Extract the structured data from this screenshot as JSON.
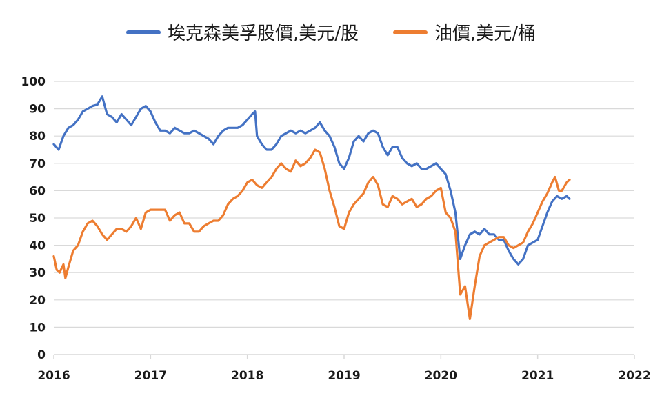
{
  "chart_data": {
    "type": "line",
    "title": "",
    "xlabel": "",
    "ylabel": "",
    "xlim": [
      2016,
      2022
    ],
    "ylim": [
      0,
      100
    ],
    "x_ticks": [
      "2016",
      "2017",
      "2018",
      "2019",
      "2020",
      "2021",
      "2022"
    ],
    "y_ticks": [
      "0",
      "10",
      "20",
      "30",
      "40",
      "50",
      "60",
      "70",
      "80",
      "90",
      "100"
    ],
    "grid": "horizontal",
    "legend_position": "top",
    "series": [
      {
        "name": "埃克森美孚股價,美元/股",
        "color": "#4472C4",
        "points": [
          [
            2016.0,
            77
          ],
          [
            2016.05,
            75
          ],
          [
            2016.1,
            80
          ],
          [
            2016.15,
            83
          ],
          [
            2016.2,
            84
          ],
          [
            2016.25,
            86
          ],
          [
            2016.3,
            89
          ],
          [
            2016.35,
            90
          ],
          [
            2016.4,
            91
          ],
          [
            2016.45,
            91.5
          ],
          [
            2016.5,
            94.5
          ],
          [
            2016.55,
            88
          ],
          [
            2016.6,
            87
          ],
          [
            2016.65,
            85
          ],
          [
            2016.7,
            88
          ],
          [
            2016.75,
            86
          ],
          [
            2016.8,
            84
          ],
          [
            2016.85,
            87
          ],
          [
            2016.9,
            90
          ],
          [
            2016.95,
            91
          ],
          [
            2017.0,
            89
          ],
          [
            2017.05,
            85
          ],
          [
            2017.1,
            82
          ],
          [
            2017.15,
            82
          ],
          [
            2017.2,
            81
          ],
          [
            2017.25,
            83
          ],
          [
            2017.3,
            82
          ],
          [
            2017.35,
            81
          ],
          [
            2017.4,
            81
          ],
          [
            2017.45,
            82
          ],
          [
            2017.5,
            81
          ],
          [
            2017.55,
            80
          ],
          [
            2017.6,
            79
          ],
          [
            2017.65,
            77
          ],
          [
            2017.7,
            80
          ],
          [
            2017.75,
            82
          ],
          [
            2017.8,
            83
          ],
          [
            2017.85,
            83
          ],
          [
            2017.9,
            83
          ],
          [
            2017.95,
            84
          ],
          [
            2018.0,
            86
          ],
          [
            2018.05,
            88
          ],
          [
            2018.08,
            89
          ],
          [
            2018.1,
            80
          ],
          [
            2018.15,
            77
          ],
          [
            2018.2,
            75
          ],
          [
            2018.25,
            75
          ],
          [
            2018.3,
            77
          ],
          [
            2018.35,
            80
          ],
          [
            2018.4,
            81
          ],
          [
            2018.45,
            82
          ],
          [
            2018.5,
            81
          ],
          [
            2018.55,
            82
          ],
          [
            2018.6,
            81
          ],
          [
            2018.65,
            82
          ],
          [
            2018.7,
            83
          ],
          [
            2018.75,
            85
          ],
          [
            2018.8,
            82
          ],
          [
            2018.85,
            80
          ],
          [
            2018.9,
            76
          ],
          [
            2018.95,
            70
          ],
          [
            2019.0,
            68
          ],
          [
            2019.05,
            72
          ],
          [
            2019.1,
            78
          ],
          [
            2019.15,
            80
          ],
          [
            2019.2,
            78
          ],
          [
            2019.25,
            81
          ],
          [
            2019.3,
            82
          ],
          [
            2019.35,
            81
          ],
          [
            2019.4,
            76
          ],
          [
            2019.45,
            73
          ],
          [
            2019.5,
            76
          ],
          [
            2019.55,
            76
          ],
          [
            2019.6,
            72
          ],
          [
            2019.65,
            70
          ],
          [
            2019.7,
            69
          ],
          [
            2019.75,
            70
          ],
          [
            2019.8,
            68
          ],
          [
            2019.85,
            68
          ],
          [
            2019.9,
            69
          ],
          [
            2019.95,
            70
          ],
          [
            2020.0,
            68
          ],
          [
            2020.05,
            66
          ],
          [
            2020.1,
            60
          ],
          [
            2020.15,
            52
          ],
          [
            2020.2,
            35
          ],
          [
            2020.25,
            40
          ],
          [
            2020.3,
            44
          ],
          [
            2020.35,
            45
          ],
          [
            2020.4,
            44
          ],
          [
            2020.45,
            46
          ],
          [
            2020.5,
            44
          ],
          [
            2020.55,
            44
          ],
          [
            2020.6,
            42
          ],
          [
            2020.65,
            42
          ],
          [
            2020.7,
            38
          ],
          [
            2020.75,
            35
          ],
          [
            2020.8,
            33
          ],
          [
            2020.85,
            35
          ],
          [
            2020.9,
            40
          ],
          [
            2020.95,
            41
          ],
          [
            2021.0,
            42
          ],
          [
            2021.05,
            47
          ],
          [
            2021.1,
            52
          ],
          [
            2021.15,
            56
          ],
          [
            2021.2,
            58
          ],
          [
            2021.25,
            57
          ],
          [
            2021.3,
            58
          ],
          [
            2021.33,
            57
          ]
        ]
      },
      {
        "name": "油價,美元/桶",
        "color": "#ED7D31",
        "points": [
          [
            2016.0,
            36
          ],
          [
            2016.03,
            31
          ],
          [
            2016.06,
            30
          ],
          [
            2016.1,
            33
          ],
          [
            2016.12,
            28
          ],
          [
            2016.15,
            32
          ],
          [
            2016.2,
            38
          ],
          [
            2016.25,
            40
          ],
          [
            2016.3,
            45
          ],
          [
            2016.35,
            48
          ],
          [
            2016.4,
            49
          ],
          [
            2016.45,
            47
          ],
          [
            2016.5,
            44
          ],
          [
            2016.55,
            42
          ],
          [
            2016.6,
            44
          ],
          [
            2016.65,
            46
          ],
          [
            2016.7,
            46
          ],
          [
            2016.75,
            45
          ],
          [
            2016.8,
            47
          ],
          [
            2016.85,
            50
          ],
          [
            2016.9,
            46
          ],
          [
            2016.95,
            52
          ],
          [
            2017.0,
            53
          ],
          [
            2017.05,
            53
          ],
          [
            2017.1,
            53
          ],
          [
            2017.15,
            53
          ],
          [
            2017.2,
            49
          ],
          [
            2017.25,
            51
          ],
          [
            2017.3,
            52
          ],
          [
            2017.35,
            48
          ],
          [
            2017.4,
            48
          ],
          [
            2017.45,
            45
          ],
          [
            2017.5,
            45
          ],
          [
            2017.55,
            47
          ],
          [
            2017.6,
            48
          ],
          [
            2017.65,
            49
          ],
          [
            2017.7,
            49
          ],
          [
            2017.75,
            51
          ],
          [
            2017.8,
            55
          ],
          [
            2017.85,
            57
          ],
          [
            2017.9,
            58
          ],
          [
            2017.95,
            60
          ],
          [
            2018.0,
            63
          ],
          [
            2018.05,
            64
          ],
          [
            2018.1,
            62
          ],
          [
            2018.15,
            61
          ],
          [
            2018.2,
            63
          ],
          [
            2018.25,
            65
          ],
          [
            2018.3,
            68
          ],
          [
            2018.35,
            70
          ],
          [
            2018.4,
            68
          ],
          [
            2018.45,
            67
          ],
          [
            2018.5,
            71
          ],
          [
            2018.55,
            69
          ],
          [
            2018.6,
            70
          ],
          [
            2018.65,
            72
          ],
          [
            2018.7,
            75
          ],
          [
            2018.75,
            74
          ],
          [
            2018.8,
            68
          ],
          [
            2018.85,
            60
          ],
          [
            2018.9,
            54
          ],
          [
            2018.95,
            47
          ],
          [
            2019.0,
            46
          ],
          [
            2019.05,
            52
          ],
          [
            2019.1,
            55
          ],
          [
            2019.15,
            57
          ],
          [
            2019.2,
            59
          ],
          [
            2019.25,
            63
          ],
          [
            2019.3,
            65
          ],
          [
            2019.35,
            62
          ],
          [
            2019.4,
            55
          ],
          [
            2019.45,
            54
          ],
          [
            2019.5,
            58
          ],
          [
            2019.55,
            57
          ],
          [
            2019.6,
            55
          ],
          [
            2019.65,
            56
          ],
          [
            2019.7,
            57
          ],
          [
            2019.75,
            54
          ],
          [
            2019.8,
            55
          ],
          [
            2019.85,
            57
          ],
          [
            2019.9,
            58
          ],
          [
            2019.95,
            60
          ],
          [
            2020.0,
            61
          ],
          [
            2020.05,
            52
          ],
          [
            2020.1,
            50
          ],
          [
            2020.15,
            45
          ],
          [
            2020.2,
            22
          ],
          [
            2020.25,
            25
          ],
          [
            2020.3,
            13
          ],
          [
            2020.35,
            25
          ],
          [
            2020.4,
            36
          ],
          [
            2020.45,
            40
          ],
          [
            2020.5,
            41
          ],
          [
            2020.55,
            42
          ],
          [
            2020.6,
            43
          ],
          [
            2020.65,
            43
          ],
          [
            2020.7,
            40
          ],
          [
            2020.75,
            39
          ],
          [
            2020.8,
            40
          ],
          [
            2020.85,
            41
          ],
          [
            2020.9,
            45
          ],
          [
            2020.95,
            48
          ],
          [
            2021.0,
            52
          ],
          [
            2021.05,
            56
          ],
          [
            2021.1,
            59
          ],
          [
            2021.15,
            63
          ],
          [
            2021.18,
            65
          ],
          [
            2021.22,
            60
          ],
          [
            2021.25,
            60
          ],
          [
            2021.3,
            63
          ],
          [
            2021.33,
            64
          ]
        ]
      }
    ]
  }
}
